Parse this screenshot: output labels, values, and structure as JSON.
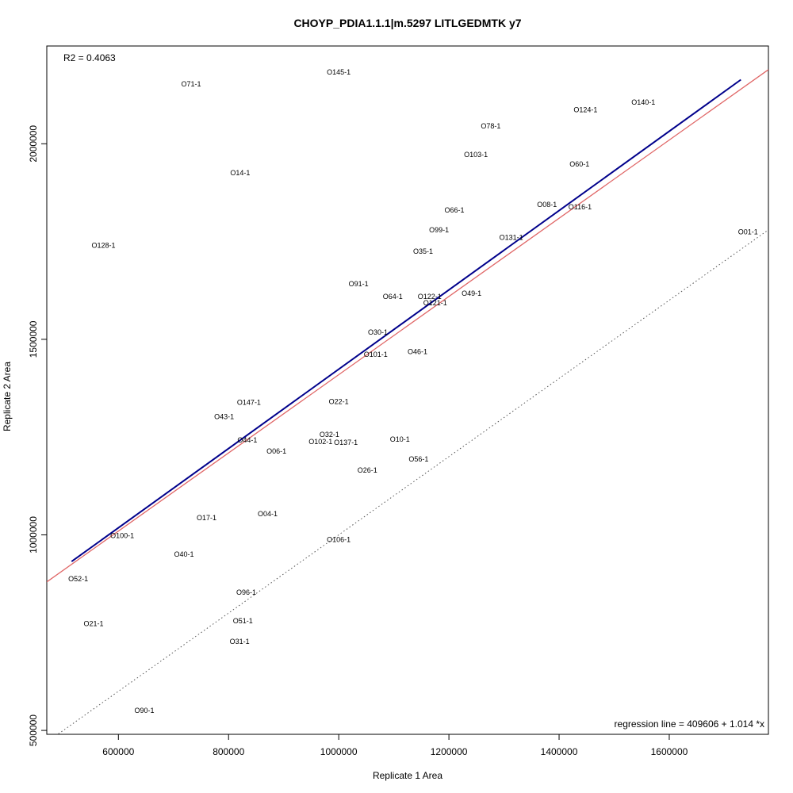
{
  "chart_data": {
    "type": "scatter",
    "title": "CHOYP_PDIA1.1.1|m.5297 LITLGEDMTK y7",
    "xlabel": "Replicate 1 Area",
    "ylabel": "Replicate 2 Area",
    "xlim": [
      470000,
      1780000
    ],
    "ylim": [
      490000,
      2250000
    ],
    "xticks": [
      600000,
      800000,
      1000000,
      1200000,
      1400000,
      1600000
    ],
    "yticks": [
      500000,
      1000000,
      1500000,
      2000000
    ],
    "xtick_labels": [
      "600000",
      "800000",
      "1000000",
      "1200000",
      "1400000",
      "1600000"
    ],
    "ytick_labels": [
      "500000",
      "1000000",
      "1500000",
      "2000000"
    ],
    "r2_text": "R2 = 0.4063",
    "regression_text": "regression line = 409606 + 1.014 *x",
    "regression": {
      "intercept": 409606,
      "slope": 1.014,
      "x_range": [
        515000,
        1730000
      ],
      "color": "#00008B"
    },
    "red_line": {
      "intercept": 409606,
      "slope": 1.0,
      "color": "#E06666"
    },
    "identity_line": {
      "intercept": 0,
      "slope": 1.0,
      "color": "#555555",
      "style": "dotted"
    },
    "points": [
      {
        "label": "O145-1",
        "x": 1000000,
        "y": 2183000
      },
      {
        "label": "O71-1",
        "x": 732000,
        "y": 2153000
      },
      {
        "label": "O140-1",
        "x": 1553000,
        "y": 2106000
      },
      {
        "label": "O124-1",
        "x": 1448000,
        "y": 2087000
      },
      {
        "label": "O78-1",
        "x": 1276000,
        "y": 2045000
      },
      {
        "label": "O103-1",
        "x": 1249000,
        "y": 1972000
      },
      {
        "label": "O60-1",
        "x": 1437000,
        "y": 1948000
      },
      {
        "label": "O14-1",
        "x": 821000,
        "y": 1926000
      },
      {
        "label": "O08-1",
        "x": 1378000,
        "y": 1844000
      },
      {
        "label": "O116-1",
        "x": 1438000,
        "y": 1838000
      },
      {
        "label": "O66-1",
        "x": 1210000,
        "y": 1830000
      },
      {
        "label": "O99-1",
        "x": 1182000,
        "y": 1780000
      },
      {
        "label": "O01-1",
        "x": 1743000,
        "y": 1775000
      },
      {
        "label": "O131-1",
        "x": 1313000,
        "y": 1760000
      },
      {
        "label": "O128-1",
        "x": 573000,
        "y": 1740000
      },
      {
        "label": "O35-1",
        "x": 1153000,
        "y": 1725000
      },
      {
        "label": "O91-1",
        "x": 1036000,
        "y": 1642000
      },
      {
        "label": "O64-1",
        "x": 1098000,
        "y": 1609000
      },
      {
        "label": "O122-1",
        "x": 1165000,
        "y": 1609000
      },
      {
        "label": "O49-1",
        "x": 1241000,
        "y": 1617000
      },
      {
        "label": "O121-1",
        "x": 1175000,
        "y": 1593000
      },
      {
        "label": "O30-1",
        "x": 1071000,
        "y": 1518000
      },
      {
        "label": "O101-1",
        "x": 1067000,
        "y": 1461000
      },
      {
        "label": "O46-1",
        "x": 1143000,
        "y": 1468000
      },
      {
        "label": "O147-1",
        "x": 837000,
        "y": 1339000
      },
      {
        "label": "O22-1",
        "x": 1000000,
        "y": 1341000
      },
      {
        "label": "O43-1",
        "x": 792000,
        "y": 1302000
      },
      {
        "label": "O32-1",
        "x": 983000,
        "y": 1256000
      },
      {
        "label": "O44-1",
        "x": 834000,
        "y": 1242000
      },
      {
        "label": "O102-1",
        "x": 967000,
        "y": 1238000
      },
      {
        "label": "O137-1",
        "x": 1013000,
        "y": 1236000
      },
      {
        "label": "O10-1",
        "x": 1111000,
        "y": 1244000
      },
      {
        "label": "O06-1",
        "x": 887000,
        "y": 1214000
      },
      {
        "label": "O56-1",
        "x": 1145000,
        "y": 1194000
      },
      {
        "label": "O26-1",
        "x": 1052000,
        "y": 1165000
      },
      {
        "label": "O17-1",
        "x": 760000,
        "y": 1044000
      },
      {
        "label": "O04-1",
        "x": 871000,
        "y": 1054000
      },
      {
        "label": "O100-1",
        "x": 607000,
        "y": 998000
      },
      {
        "label": "O106-1",
        "x": 1000000,
        "y": 988000
      },
      {
        "label": "O40-1",
        "x": 719000,
        "y": 950000
      },
      {
        "label": "O52-1",
        "x": 527000,
        "y": 887000
      },
      {
        "label": "O96-1",
        "x": 832000,
        "y": 853000
      },
      {
        "label": "O21-1",
        "x": 555000,
        "y": 773000
      },
      {
        "label": "O51-1",
        "x": 826000,
        "y": 780000
      },
      {
        "label": "O31-1",
        "x": 820000,
        "y": 727000
      },
      {
        "label": "O90-1",
        "x": 647000,
        "y": 551000
      }
    ]
  }
}
